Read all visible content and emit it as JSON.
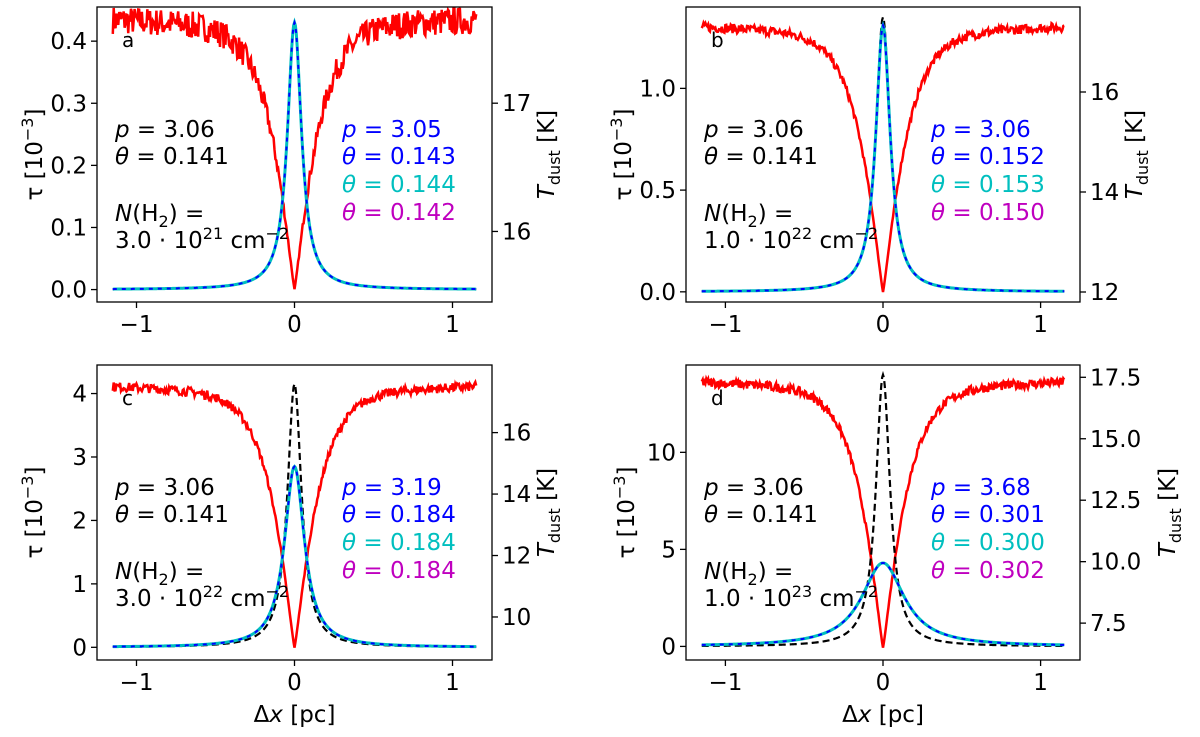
{
  "chart_data": {
    "type": "line",
    "x_label_math": "Δ",
    "x_label_var": "x",
    "x_label_unit": " [pc]",
    "xlim": [
      -1.25,
      1.25
    ],
    "x_ticks": [
      -1,
      0,
      1
    ],
    "y_left_label": "τ [10",
    "y_left_exp": "−3",
    "y_left_close": "]",
    "y_right_label_T": "T",
    "y_right_label_sub": "dust",
    "y_right_label_unit": " [K]",
    "series_colors": {
      "temperature": "#ff0000",
      "observed": "#000000",
      "fit_p": "#0000ff",
      "fit_cyan": "#00bfbf",
      "fit_magenta": "#bf00bf"
    },
    "panels": [
      {
        "id": "a",
        "ylim_left": [
          -0.02,
          0.455
        ],
        "left_ticks": [
          0.0,
          0.1,
          0.2,
          0.3,
          0.4
        ],
        "left_tick_labels": [
          "0.0",
          "0.1",
          "0.2",
          "0.3",
          "0.4"
        ],
        "ylim_right": [
          15.45,
          17.75
        ],
        "right_ticks": [
          16,
          17
        ],
        "right_tick_labels": [
          "16",
          "17"
        ],
        "tau_peak": 0.43,
        "fit_peak": 0.43,
        "temp_max": 17.65,
        "temp_min": 15.55,
        "fixed": {
          "p": "3.06",
          "theta": "0.141"
        },
        "fit": {
          "p": "3.05",
          "theta_blue": "0.143",
          "theta_cyan": "0.144",
          "theta_magenta": "0.142"
        },
        "column_density": {
          "mantissa": "3.0",
          "exponent": "21"
        }
      },
      {
        "id": "b",
        "ylim_left": [
          -0.05,
          1.4
        ],
        "left_ticks": [
          0.0,
          0.5,
          1.0
        ],
        "left_tick_labels": [
          "0.0",
          "0.5",
          "1.0"
        ],
        "ylim_right": [
          11.8,
          17.7
        ],
        "right_ticks": [
          12,
          14,
          16
        ],
        "right_tick_labels": [
          "12",
          "14",
          "16"
        ],
        "tau_peak": 1.35,
        "fit_peak": 1.31,
        "temp_max": 17.3,
        "temp_min": 12.0,
        "fixed": {
          "p": "3.06",
          "theta": "0.141"
        },
        "fit": {
          "p": "3.06",
          "theta_blue": "0.152",
          "theta_cyan": "0.153",
          "theta_magenta": "0.150"
        },
        "column_density": {
          "mantissa": "1.0",
          "exponent": "22"
        }
      },
      {
        "id": "c",
        "ylim_left": [
          -0.2,
          4.45
        ],
        "left_ticks": [
          0,
          1,
          2,
          3,
          4
        ],
        "left_tick_labels": [
          "0",
          "1",
          "2",
          "3",
          "4"
        ],
        "ylim_right": [
          8.6,
          18.2
        ],
        "right_ticks": [
          10,
          12,
          14,
          16
        ],
        "right_tick_labels": [
          "10",
          "12",
          "14",
          "16"
        ],
        "tau_peak": 4.15,
        "fit_peak": 2.85,
        "temp_max": 17.5,
        "temp_min": 9.0,
        "fixed": {
          "p": "3.06",
          "theta": "0.141"
        },
        "fit": {
          "p": "3.19",
          "theta_blue": "0.184",
          "theta_cyan": "0.184",
          "theta_magenta": "0.184"
        },
        "column_density": {
          "mantissa": "3.0",
          "exponent": "22"
        }
      },
      {
        "id": "d",
        "ylim_left": [
          -0.7,
          14.5
        ],
        "left_ticks": [
          0,
          5,
          10
        ],
        "left_tick_labels": [
          "0",
          "5",
          "10"
        ],
        "ylim_right": [
          6.0,
          18.0
        ],
        "right_ticks": [
          7.5,
          10.0,
          12.5,
          15.0,
          17.5
        ],
        "right_tick_labels": [
          "7.5",
          "10.0",
          "12.5",
          "15.0",
          "17.5"
        ],
        "tau_peak": 14.0,
        "fit_peak": 4.3,
        "temp_max": 17.3,
        "temp_min": 6.5,
        "fixed": {
          "p": "3.06",
          "theta": "0.141"
        },
        "fit": {
          "p": "3.68",
          "theta_blue": "0.301",
          "theta_cyan": "0.300",
          "theta_magenta": "0.302"
        },
        "column_density": {
          "mantissa": "1.0",
          "exponent": "23"
        }
      }
    ]
  }
}
